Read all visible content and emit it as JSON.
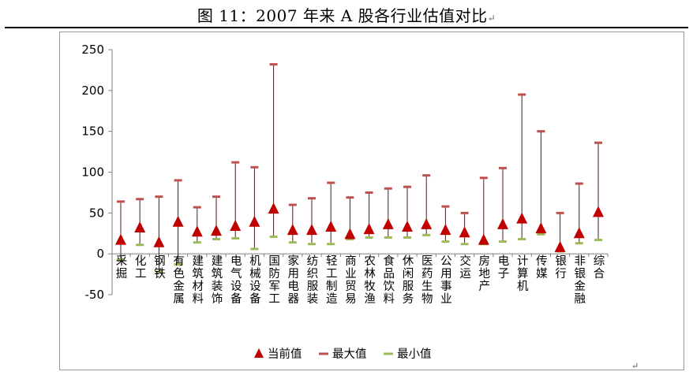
{
  "title": "图 11：2007 年来 A 股各行业估值对比",
  "title_mark": "↵",
  "end_mark": "↵",
  "colors": {
    "current": "#c00000",
    "max": "#c0504d",
    "min": "#9bbb59",
    "line": "#4a1f1f"
  },
  "chart_data": {
    "type": "scatter",
    "title": "",
    "xlabel": "",
    "ylabel": "",
    "ylim": [
      -50,
      250
    ],
    "yticks": [
      -50,
      0,
      50,
      100,
      150,
      200,
      250
    ],
    "grid": false,
    "legend_position": "bottom",
    "categories": [
      "采掘",
      "化工",
      "钢铁",
      "有色金属",
      "建筑材料",
      "建筑装饰",
      "电气设备",
      "机械设备",
      "国防军工",
      "家用电器",
      "纺织服装",
      "轻工制造",
      "商业贸易",
      "农林牧渔",
      "食品饮料",
      "休闲服务",
      "医药生物",
      "公用事业",
      "交运",
      "房地产",
      "电子",
      "计算机",
      "传媒",
      "银行",
      "非银金融",
      "综合"
    ],
    "series": [
      {
        "name": "当前值",
        "values": [
          16,
          31,
          13,
          38,
          26,
          27,
          33,
          38,
          54,
          28,
          28,
          32,
          23,
          29,
          35,
          32,
          35,
          28,
          25,
          16,
          35,
          42,
          30,
          7,
          24,
          50
        ]
      },
      {
        "name": "最大值",
        "values": [
          64,
          67,
          70,
          90,
          57,
          70,
          112,
          106,
          232,
          60,
          68,
          87,
          69,
          75,
          80,
          82,
          96,
          58,
          50,
          93,
          105,
          195,
          150,
          50,
          86,
          136
        ]
      },
      {
        "name": "最小值",
        "values": [
          -7,
          11,
          -22,
          -13,
          14,
          18,
          19,
          6,
          21,
          14,
          12,
          12,
          18,
          20,
          20,
          20,
          23,
          15,
          12,
          12,
          15,
          18,
          24,
          3,
          13,
          17
        ]
      }
    ]
  }
}
